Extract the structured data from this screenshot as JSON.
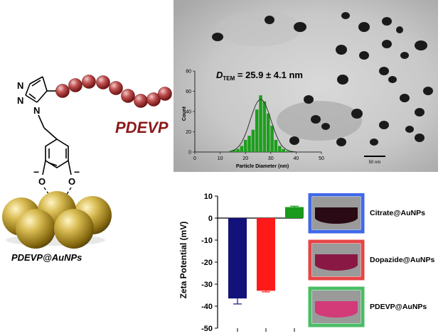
{
  "scheme": {
    "polymer_label": "PDEVP",
    "nanoparticle_label": "PDEVP@AuNPs",
    "atom_N": "N",
    "atom_O": "O",
    "charge_minus": "−"
  },
  "tem": {
    "dtem_symbol": "D",
    "dtem_subscript": "TEM",
    "dtem_value": " = 25.9 ± 4.1 nm",
    "scale_bar_label": "50 nm",
    "histogram_xlabel": "Particle Diameter (nm)",
    "histogram_ylabel": "Count"
  },
  "vials": [
    {
      "label": "Citrate@AuNPs",
      "frame_color": "#1f4fe0",
      "liquid_color": "#2a0a14"
    },
    {
      "label": "Dopazide@AuNPs",
      "frame_color": "#e02424",
      "liquid_color": "#8a1845"
    },
    {
      "label": "PDEVP@AuNPs",
      "frame_color": "#2bb14a",
      "liquid_color": "#d23a78"
    }
  ],
  "colors": {
    "bead": "#b03a3a",
    "polymer_text": "#8b1a1a",
    "gold": "#c9a93a",
    "histogram_bar": "#1e9e1e"
  },
  "chart_data": [
    {
      "type": "bar",
      "title": "",
      "xlabel": "Particle Diameter (nm)",
      "ylabel": "Count",
      "xlim": [
        0,
        50
      ],
      "ylim": [
        0,
        80
      ],
      "xticks": [
        0,
        10,
        20,
        30,
        40,
        50
      ],
      "yticks": [
        0,
        20,
        40,
        60,
        80
      ],
      "bin_width": 1.5,
      "x": [
        14,
        15.5,
        17,
        18.5,
        20,
        21.5,
        23,
        24.5,
        26,
        27.5,
        29,
        30.5,
        32,
        33.5,
        35,
        36.5
      ],
      "values": [
        1,
        2,
        3,
        6,
        12,
        16,
        22,
        42,
        56,
        50,
        38,
        26,
        12,
        6,
        3,
        1
      ],
      "annotation": "DTEM = 25.9 ± 4.1 nm"
    },
    {
      "type": "bar",
      "title": "",
      "xlabel": "",
      "ylabel": "Zeta Potential (mV)",
      "ylim": [
        -50,
        10
      ],
      "yticks": [
        10,
        0,
        -10,
        -20,
        -30,
        -40,
        -50
      ],
      "categories": [
        "Citrate@AuNPs",
        "Dopazide@AuNPs",
        "PDEVP@AuNPs"
      ],
      "values": [
        -36.5,
        -33,
        5
      ],
      "errors": [
        2.5,
        0.5,
        0.4
      ],
      "bar_colors": [
        "#12127a",
        "#ff1a1a",
        "#1a9a1a"
      ]
    }
  ]
}
